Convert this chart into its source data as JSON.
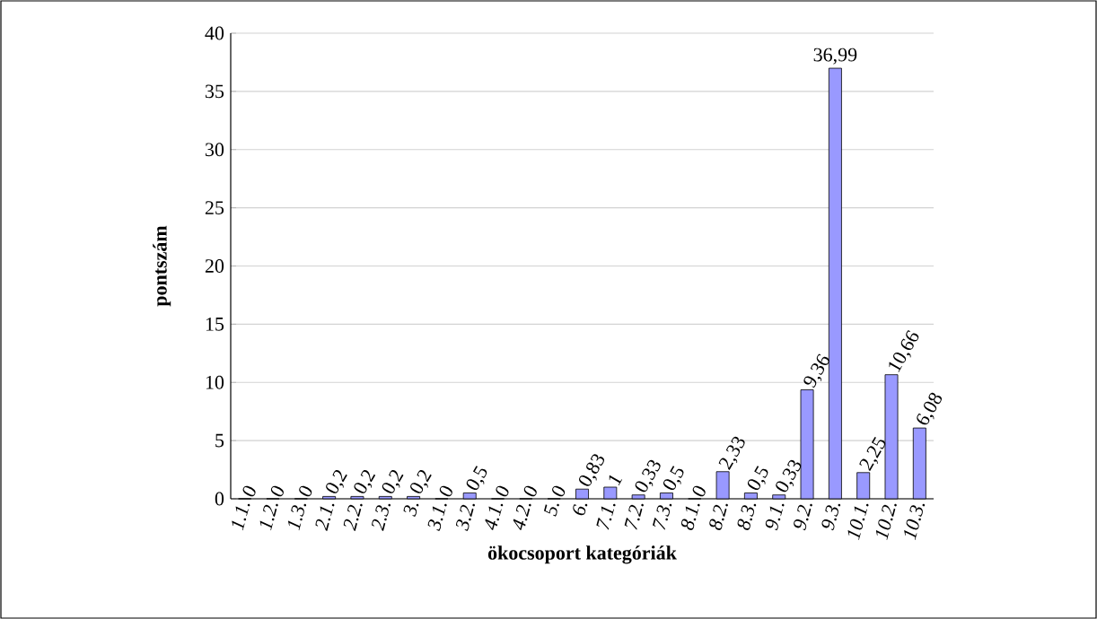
{
  "chart_data": {
    "type": "bar",
    "xlabel": "ökocsoport kategóriák",
    "ylabel": "pontszám",
    "categories": [
      "1.1.",
      "1.2.",
      "1.3.",
      "2.1.",
      "2.2.",
      "2.3.",
      "3.",
      "3.1.",
      "3.2.",
      "4.1.",
      "4.2.",
      "5.",
      "6.",
      "7.1.",
      "7.2.",
      "7.3.",
      "8.1.",
      "8.2.",
      "8.3.",
      "9.1.",
      "9.2.",
      "9.3.",
      "10.1.",
      "10.2.",
      "10.3."
    ],
    "values": [
      0,
      0,
      0,
      0.2,
      0.2,
      0.2,
      0.2,
      0,
      0.5,
      0,
      0,
      0,
      0.83,
      1,
      0.33,
      0.5,
      0,
      2.33,
      0.5,
      0.33,
      9.36,
      36.99,
      2.25,
      10.66,
      6.08
    ],
    "value_labels": [
      "0",
      "0",
      "0",
      "0,2",
      "0,2",
      "0,2",
      "0,2",
      "0",
      "0,5",
      "0",
      "0",
      "0",
      "0,83",
      "1",
      "0,33",
      "0,5",
      "0",
      "2,33",
      "0,5",
      "0,33",
      "9,36",
      "36,99",
      "2,25",
      "10,66",
      "6,08"
    ],
    "color": "#9999ff",
    "ylim": [
      0,
      40
    ],
    "yticks": [
      0,
      5,
      10,
      15,
      20,
      25,
      30,
      35,
      40
    ],
    "grid": "y"
  }
}
